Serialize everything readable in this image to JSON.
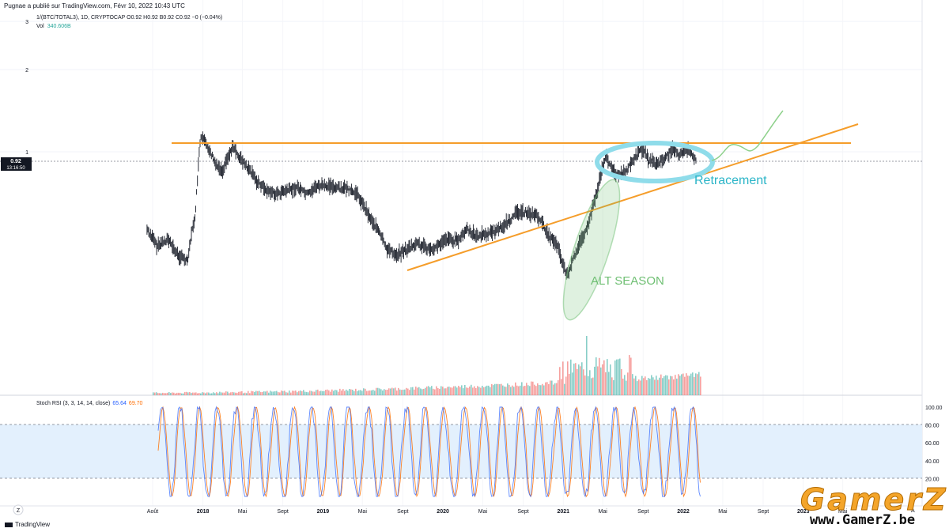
{
  "publisher": "Pugnae a publié sur TradingView.com, Févr 10, 2022 10:43 UTC",
  "legend": {
    "symbol": "1/(BTC/TOTAL3), 1D, CRYPTOCAP",
    "ohlc": "O0.92  H0.92  B0.92  C0.92  −0 (−0.04%)",
    "vol_label": "Vol",
    "vol_value": "340.606B"
  },
  "price_badge": {
    "value": "0.92",
    "countdown": "13:16:50"
  },
  "annotations": {
    "retracement": "Retracement",
    "alt_season": "ALT SEASON"
  },
  "stoch": {
    "label": "Stoch RSI (3, 3, 14, 14, close)",
    "k": "65.64",
    "d": "69.70"
  },
  "brand": "TradingView",
  "watermark": {
    "name": "GamerZ",
    "url": "www.GamerZ.be"
  },
  "scale_button": "Z",
  "colors": {
    "candle": "#131722",
    "orange": "#f59d2a",
    "cyan": "#8fdcea",
    "green": "#6fbf73",
    "stoch_k": "#2962ff",
    "stoch_d": "#ff6d00",
    "band": "#e3f0fd",
    "vol_up": "#26a69a",
    "vol_down": "#ef5350"
  },
  "chart_data": [
    {
      "type": "line",
      "series": [
        {
          "x": [
            "2017-07-15",
            "2017-08-15",
            "2017-09-15",
            "2017-10-15",
            "2017-11-15",
            "2017-12-10",
            "2017-12-25",
            "2018-01-15",
            "2018-02-05",
            "2018-03-01",
            "2018-04-01",
            "2018-05-01",
            "2018-06-15",
            "2018-07-15",
            "2018-08-15",
            "2018-09-15",
            "2018-10-15",
            "2018-11-15",
            "2018-12-15",
            "2019-01-15",
            "2019-02-15",
            "2019-03-15",
            "2019-04-15",
            "2019-05-15",
            "2019-06-15",
            "2019-07-15",
            "2019-08-15",
            "2019-09-15",
            "2019-10-15",
            "2019-11-15",
            "2019-12-15",
            "2020-01-15",
            "2020-02-15",
            "2020-03-15",
            "2020-04-15",
            "2020-05-15",
            "2020-06-15",
            "2020-07-15",
            "2020-08-15",
            "2020-09-15",
            "2020-10-15",
            "2020-11-15",
            "2020-12-15",
            "2021-01-01",
            "2021-01-15",
            "2021-02-15",
            "2021-03-15",
            "2021-04-15",
            "2021-05-10",
            "2021-05-25",
            "2021-06-15",
            "2021-07-15",
            "2021-08-15",
            "2021-09-01",
            "2021-09-20",
            "2021-10-15",
            "2021-11-15",
            "2021-12-01",
            "2021-12-20",
            "2022-01-15",
            "2022-02-10"
          ],
          "values": [
            0.52,
            0.45,
            0.48,
            0.42,
            0.4,
            0.6,
            1.13,
            1.05,
            0.92,
            0.85,
            1.04,
            0.92,
            0.78,
            0.72,
            0.7,
            0.72,
            0.74,
            0.7,
            0.75,
            0.75,
            0.74,
            0.73,
            0.7,
            0.6,
            0.52,
            0.44,
            0.42,
            0.44,
            0.46,
            0.44,
            0.45,
            0.48,
            0.47,
            0.52,
            0.49,
            0.5,
            0.52,
            0.55,
            0.6,
            0.6,
            0.58,
            0.5,
            0.45,
            0.38,
            0.35,
            0.45,
            0.52,
            0.72,
            0.97,
            0.88,
            0.82,
            0.86,
            0.98,
            1.03,
            0.92,
            0.9,
            0.97,
            1.02,
            0.97,
            1.03,
            0.92
          ]
        }
      ],
      "x_ticks": [
        "Août",
        "2018",
        "Mai",
        "Sept",
        "2019",
        "Mai",
        "Sept",
        "2020",
        "Mai",
        "Sept",
        "2021",
        "Mai",
        "Sept",
        "2022",
        "Mai",
        "Sept",
        "2023",
        "Mai"
      ],
      "y_ticks": [
        "3",
        "2",
        "1"
      ],
      "y_scale": "log",
      "ylim": [
        0.3,
        3.2
      ]
    },
    {
      "type": "line",
      "y_ticks": [
        "100.00",
        "80.00",
        "60.00",
        "40.00",
        "20.00"
      ],
      "ylim": [
        0,
        100
      ],
      "bands": [
        20,
        80
      ]
    }
  ]
}
